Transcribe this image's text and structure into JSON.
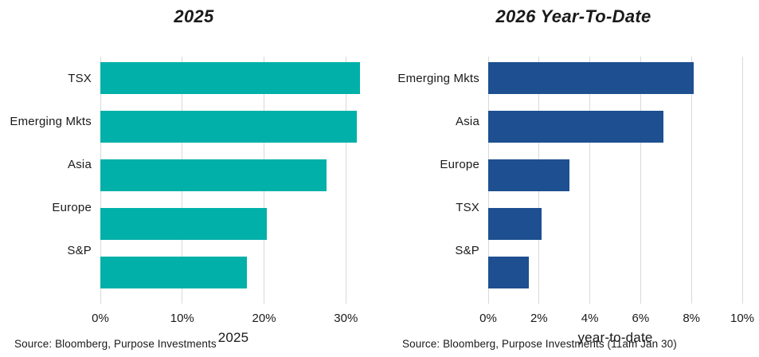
{
  "colors": {
    "grid": "#d9d9d9",
    "text": "#1a1a1a",
    "teal": "#00b0a9",
    "navy": "#1d4f91"
  },
  "chart_data": [
    {
      "type": "bar",
      "orientation": "horizontal",
      "title": "2025",
      "categories": [
        "TSX",
        "Emerging Mkts",
        "Asia",
        "Europe",
        "S&P"
      ],
      "values": [
        31.7,
        31.3,
        27.6,
        20.3,
        17.9
      ],
      "unit": "%",
      "xlabel": "2025",
      "xlim": [
        0,
        32.5
      ],
      "xticks": [
        {
          "value": 0,
          "label": "0%"
        },
        {
          "value": 10,
          "label": "10%"
        },
        {
          "value": 20,
          "label": "20%"
        },
        {
          "value": 30,
          "label": "30%"
        }
      ],
      "grid": true,
      "legend": null,
      "bar_color": "#00b0a9",
      "source": "Source: Bloomberg, Purpose Investments"
    },
    {
      "type": "bar",
      "orientation": "horizontal",
      "title": "2026 Year-To-Date",
      "categories": [
        "Emerging Mkts",
        "Asia",
        "Europe",
        "TSX",
        "S&P"
      ],
      "values": [
        8.1,
        6.9,
        3.2,
        2.1,
        1.6
      ],
      "unit": "%",
      "xlabel": "year-to-date",
      "xlim": [
        0,
        10
      ],
      "xticks": [
        {
          "value": 0,
          "label": "0%"
        },
        {
          "value": 2,
          "label": "2%"
        },
        {
          "value": 4,
          "label": "4%"
        },
        {
          "value": 6,
          "label": "6%"
        },
        {
          "value": 8,
          "label": "8%"
        },
        {
          "value": 10,
          "label": "10%"
        }
      ],
      "grid": true,
      "legend": null,
      "bar_color": "#1d4f91",
      "source": "Source: Bloomberg, Purpose Investments (11am Jan 30)"
    }
  ]
}
